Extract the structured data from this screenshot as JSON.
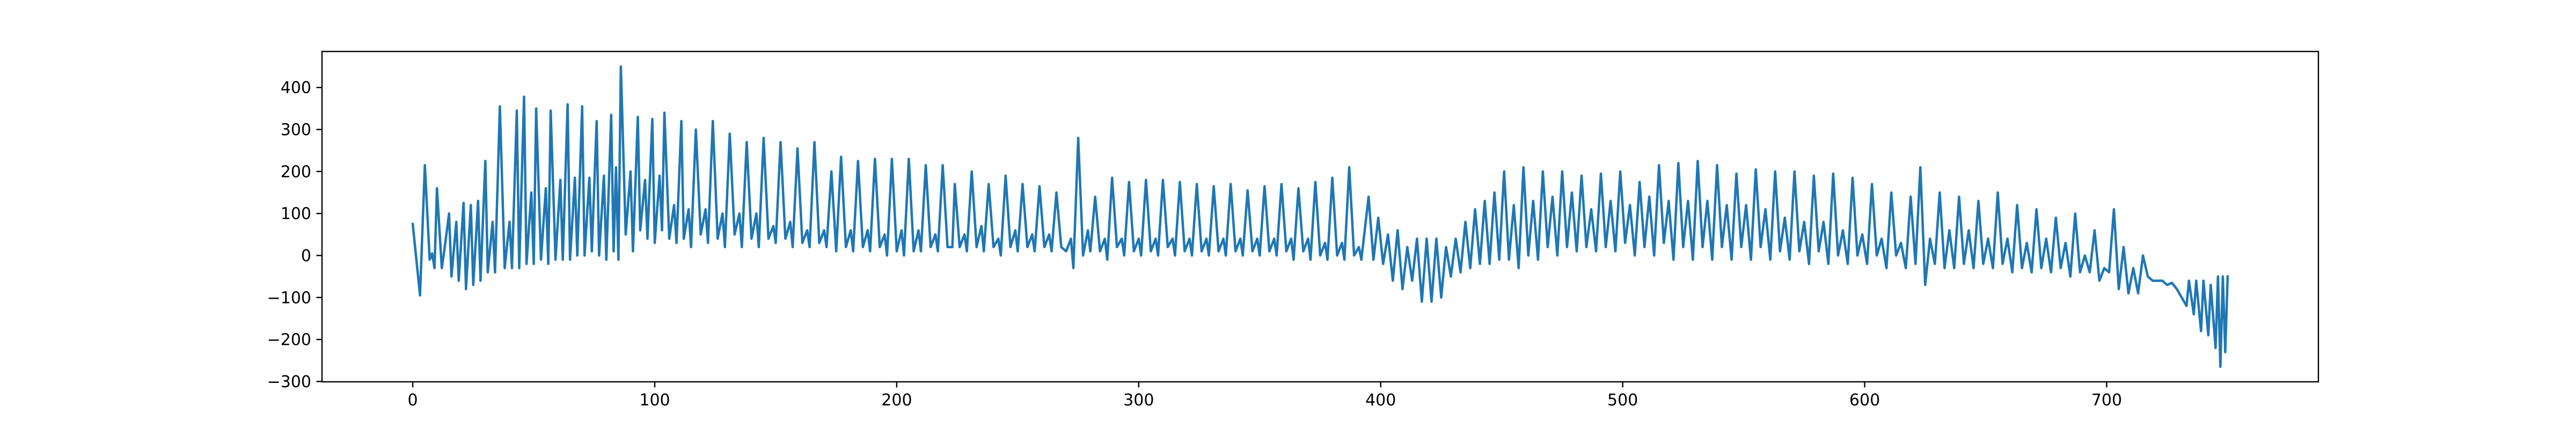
{
  "chart_data": {
    "type": "line",
    "color": "#1f77b4",
    "xlim": [
      -37.5,
      787.5
    ],
    "ylim": [
      -300.75,
      485.75
    ],
    "xticks": [
      0,
      100,
      200,
      300,
      400,
      500,
      600,
      700
    ],
    "yticks": [
      {
        "value": -300,
        "label": "−300"
      },
      {
        "value": -200,
        "label": "−200"
      },
      {
        "value": -100,
        "label": "−100"
      },
      0,
      100,
      200,
      300,
      400
    ],
    "x": [
      0,
      3,
      5,
      7,
      8,
      9,
      10,
      12,
      13,
      15,
      16,
      18,
      19,
      21,
      22,
      24,
      25,
      27,
      28,
      30,
      31,
      33,
      34,
      36,
      38,
      40,
      41,
      43,
      44,
      46,
      47,
      49,
      50,
      51,
      53,
      55,
      56,
      57,
      59,
      61,
      62,
      64,
      65,
      67,
      68,
      70,
      71,
      73,
      74,
      76,
      77,
      79,
      80,
      82,
      83,
      84,
      85,
      86,
      88,
      90,
      91,
      93,
      94,
      96,
      97,
      99,
      100,
      102,
      103,
      104,
      106,
      108,
      109,
      111,
      112,
      114,
      115,
      117,
      119,
      121,
      122,
      124,
      126,
      128,
      129,
      131,
      133,
      135,
      136,
      138,
      140,
      142,
      143,
      145,
      147,
      149,
      150,
      152,
      154,
      156,
      157,
      159,
      161,
      163,
      164,
      166,
      168,
      170,
      171,
      173,
      175,
      177,
      179,
      181,
      182,
      184,
      186,
      188,
      189,
      191,
      193,
      195,
      196,
      198,
      200,
      202,
      203,
      205,
      207,
      209,
      210,
      212,
      214,
      216,
      217,
      219,
      221,
      223,
      224,
      226,
      228,
      229,
      231,
      233,
      235,
      236,
      238,
      240,
      242,
      243,
      245,
      247,
      249,
      250,
      252,
      254,
      256,
      257,
      259,
      261,
      263,
      264,
      266,
      268,
      270,
      272,
      273,
      275,
      277,
      279,
      280,
      282,
      284,
      286,
      287,
      289,
      291,
      293,
      294,
      296,
      298,
      300,
      301,
      303,
      305,
      307,
      308,
      310,
      312,
      314,
      315,
      317,
      319,
      321,
      322,
      324,
      326,
      328,
      329,
      331,
      333,
      335,
      336,
      338,
      340,
      342,
      343,
      345,
      347,
      349,
      350,
      352,
      354,
      356,
      357,
      359,
      361,
      363,
      364,
      366,
      368,
      370,
      371,
      373,
      375,
      377,
      378,
      380,
      382,
      384,
      385,
      387,
      389,
      391,
      392,
      395,
      397,
      399,
      401,
      403,
      405,
      407,
      409,
      411,
      413,
      415,
      417,
      419,
      421,
      423,
      425,
      427,
      429,
      431,
      433,
      435,
      437,
      439,
      441,
      443,
      445,
      447,
      449,
      451,
      453,
      455,
      457,
      459,
      461,
      463,
      465,
      467,
      469,
      471,
      473,
      475,
      477,
      479,
      481,
      483,
      485,
      487,
      489,
      491,
      493,
      495,
      497,
      499,
      501,
      503,
      505,
      507,
      509,
      511,
      513,
      515,
      517,
      519,
      521,
      523,
      525,
      527,
      529,
      531,
      533,
      535,
      537,
      539,
      541,
      543,
      545,
      547,
      549,
      551,
      553,
      555,
      557,
      559,
      561,
      563,
      565,
      567,
      569,
      571,
      573,
      575,
      577,
      579,
      581,
      583,
      585,
      587,
      589,
      591,
      593,
      595,
      597,
      599,
      601,
      603,
      605,
      607,
      609,
      611,
      613,
      615,
      617,
      619,
      621,
      623,
      625,
      627,
      629,
      631,
      633,
      635,
      637,
      639,
      641,
      643,
      645,
      647,
      649,
      651,
      653,
      655,
      657,
      659,
      661,
      663,
      665,
      667,
      669,
      671,
      673,
      675,
      677,
      679,
      681,
      683,
      685,
      687,
      689,
      691,
      693,
      695,
      697,
      699,
      701,
      703,
      705,
      707,
      709,
      711,
      713,
      715,
      717,
      719,
      721,
      723,
      725,
      727,
      729,
      731,
      733,
      734,
      736,
      737,
      739,
      740,
      742,
      743,
      745,
      746,
      747,
      748,
      749,
      750
    ],
    "values": [
      75,
      -95,
      215,
      -10,
      5,
      -30,
      160,
      -30,
      10,
      100,
      -50,
      80,
      -60,
      125,
      -80,
      120,
      -70,
      130,
      -60,
      225,
      -40,
      80,
      -40,
      355,
      -30,
      80,
      -30,
      345,
      -30,
      378,
      -20,
      150,
      -20,
      350,
      -10,
      160,
      -20,
      345,
      -10,
      180,
      -10,
      360,
      -10,
      185,
      0,
      355,
      0,
      185,
      10,
      320,
      0,
      190,
      -10,
      335,
      10,
      210,
      -10,
      450,
      50,
      200,
      10,
      330,
      60,
      180,
      40,
      325,
      30,
      190,
      60,
      340,
      40,
      120,
      30,
      320,
      40,
      110,
      20,
      300,
      50,
      110,
      30,
      320,
      40,
      100,
      20,
      290,
      50,
      100,
      20,
      270,
      40,
      100,
      20,
      280,
      40,
      70,
      30,
      270,
      40,
      80,
      20,
      255,
      30,
      60,
      20,
      270,
      30,
      60,
      20,
      200,
      10,
      235,
      20,
      60,
      10,
      225,
      20,
      60,
      10,
      230,
      20,
      50,
      0,
      230,
      10,
      60,
      0,
      230,
      10,
      60,
      10,
      215,
      20,
      50,
      10,
      215,
      20,
      20,
      170,
      20,
      50,
      10,
      200,
      20,
      70,
      10,
      170,
      20,
      40,
      0,
      190,
      20,
      60,
      10,
      170,
      20,
      50,
      10,
      165,
      20,
      50,
      10,
      150,
      20,
      10,
      40,
      -30,
      280,
      0,
      60,
      10,
      140,
      10,
      40,
      -10,
      185,
      20,
      40,
      0,
      175,
      10,
      40,
      0,
      180,
      10,
      40,
      0,
      180,
      20,
      40,
      0,
      175,
      10,
      40,
      0,
      170,
      10,
      40,
      0,
      165,
      10,
      40,
      0,
      170,
      10,
      40,
      0,
      155,
      10,
      40,
      0,
      165,
      10,
      40,
      0,
      170,
      10,
      40,
      -10,
      160,
      10,
      40,
      -10,
      175,
      0,
      30,
      -10,
      185,
      0,
      30,
      -10,
      210,
      0,
      20,
      -10,
      140,
      -10,
      90,
      -20,
      50,
      -60,
      60,
      -80,
      20,
      -60,
      40,
      -110,
      40,
      -110,
      40,
      -100,
      20,
      -50,
      40,
      -40,
      80,
      -30,
      110,
      -20,
      130,
      -20,
      150,
      -10,
      200,
      -10,
      120,
      -30,
      210,
      0,
      130,
      -10,
      200,
      20,
      140,
      0,
      200,
      20,
      150,
      10,
      190,
      20,
      110,
      10,
      195,
      20,
      130,
      10,
      200,
      30,
      120,
      0,
      175,
      20,
      140,
      0,
      215,
      30,
      130,
      -10,
      220,
      20,
      130,
      -10,
      225,
      20,
      130,
      -10,
      215,
      20,
      120,
      -10,
      195,
      20,
      120,
      -10,
      205,
      20,
      110,
      -10,
      200,
      10,
      90,
      -10,
      200,
      10,
      80,
      -20,
      190,
      10,
      80,
      -20,
      195,
      0,
      60,
      -20,
      185,
      0,
      50,
      -20,
      170,
      0,
      40,
      -30,
      150,
      0,
      30,
      -30,
      140,
      -20,
      210,
      -70,
      40,
      -20,
      150,
      -30,
      60,
      -30,
      140,
      -20,
      60,
      -30,
      130,
      -20,
      40,
      -30,
      150,
      -20,
      40,
      -40,
      120,
      -30,
      30,
      -40,
      110,
      -30,
      40,
      -40,
      90,
      -30,
      30,
      -50,
      100,
      -40,
      0,
      -40,
      60,
      -60,
      -30,
      -40,
      110,
      -80,
      20,
      -90,
      -30,
      -90,
      0,
      -50,
      -60,
      -60,
      -60,
      -70,
      -65,
      -80,
      -100,
      -120,
      -60,
      -140,
      -60,
      -180,
      -60,
      -190,
      -70,
      -220,
      -50,
      -265,
      -50,
      -230,
      -50
    ]
  }
}
